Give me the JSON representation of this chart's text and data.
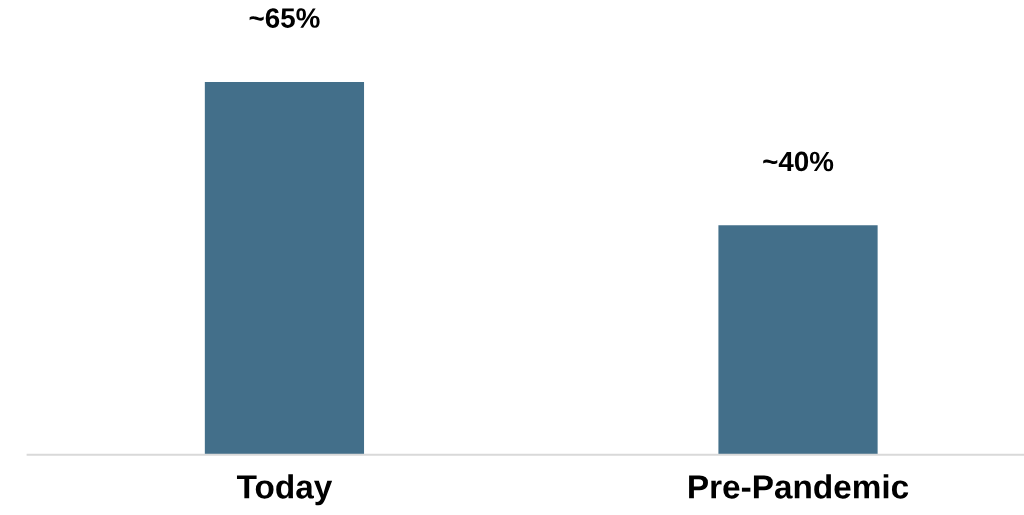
{
  "chart_data": {
    "type": "bar",
    "categories": [
      "Today",
      "Pre-Pandemic"
    ],
    "values": [
      65,
      40
    ],
    "value_labels": [
      "~65%",
      "~40%"
    ],
    "color": "#436f8a",
    "grid": false,
    "legend": false,
    "tick_labels": "x"
  }
}
